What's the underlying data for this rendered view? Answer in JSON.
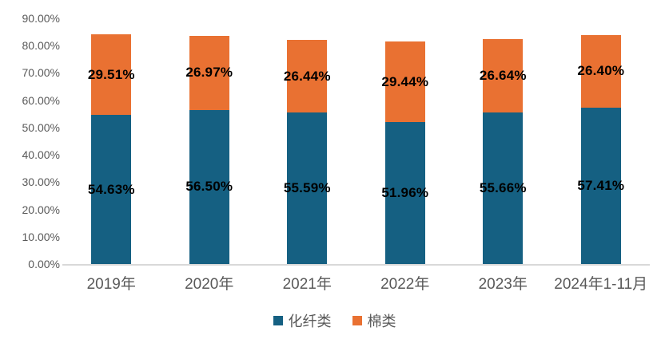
{
  "chart_data": {
    "type": "bar",
    "stacked": true,
    "title": "",
    "xlabel": "",
    "ylabel": "",
    "categories": [
      "2019年",
      "2020年",
      "2021年",
      "2022年",
      "2023年",
      "2024年1-11月"
    ],
    "series": [
      {
        "name": "化纤类",
        "color": "#156082",
        "values": [
          54.63,
          56.5,
          55.59,
          51.96,
          55.66,
          57.41
        ],
        "labels": [
          "54.63%",
          "56.50%",
          "55.59%",
          "51.96%",
          "55.66%",
          "57.41%"
        ]
      },
      {
        "name": "棉类",
        "color": "#E97132",
        "values": [
          29.51,
          26.97,
          26.44,
          29.44,
          26.64,
          26.4
        ],
        "labels": [
          "29.51%",
          "26.97%",
          "26.44%",
          "29.44%",
          "26.64%",
          "26.40%"
        ]
      }
    ],
    "ylim": [
      0,
      90
    ],
    "yticks": [
      "0.00%",
      "10.00%",
      "20.00%",
      "30.00%",
      "40.00%",
      "50.00%",
      "60.00%",
      "70.00%",
      "80.00%",
      "90.00%"
    ],
    "ytick_values": [
      0,
      10,
      20,
      30,
      40,
      50,
      60,
      70,
      80,
      90
    ],
    "grid": false,
    "legend_position": "bottom"
  },
  "colors": {
    "axis_line": "#D9D9D9",
    "axis_text": "#595959",
    "data_label_text": "#000000",
    "series_huaxian": "#156082",
    "series_mian": "#E97132",
    "background": "#ffffff"
  }
}
